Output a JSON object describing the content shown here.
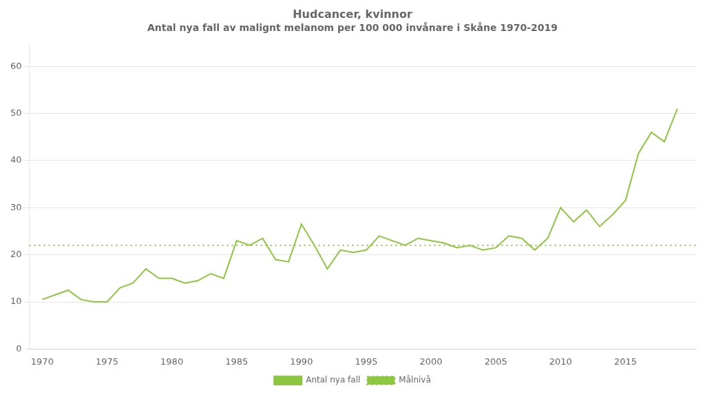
{
  "chart_data": {
    "type": "line",
    "title": "Hudcancer, kvinnor",
    "subtitle": "Antal nya fall av malignt melanom per 100 000 invånare i Skåne 1970-2019",
    "x": [
      1970,
      1971,
      1972,
      1973,
      1974,
      1975,
      1976,
      1977,
      1978,
      1979,
      1980,
      1981,
      1982,
      1983,
      1984,
      1985,
      1986,
      1987,
      1988,
      1989,
      1990,
      1991,
      1992,
      1993,
      1994,
      1995,
      1996,
      1997,
      1998,
      1999,
      2000,
      2001,
      2002,
      2003,
      2004,
      2005,
      2006,
      2007,
      2008,
      2009,
      2010,
      2011,
      2012,
      2013,
      2014,
      2015,
      2016,
      2017,
      2018,
      2019
    ],
    "series": [
      {
        "name": "Antal nya fall",
        "color": "#8DC63F",
        "line_style": "solid",
        "values": [
          10.5,
          11.5,
          12.5,
          10.5,
          10.0,
          10.0,
          13.0,
          14.0,
          17.0,
          15.0,
          15.0,
          14.0,
          14.5,
          16.0,
          15.0,
          23.0,
          22.0,
          23.5,
          19.0,
          18.5,
          26.5,
          22.0,
          17.0,
          21.0,
          20.5,
          21.0,
          24.0,
          23.0,
          22.0,
          23.5,
          23.0,
          22.5,
          21.5,
          22.0,
          21.0,
          21.5,
          24.0,
          23.5,
          21.0,
          23.5,
          30.0,
          27.0,
          29.5,
          26.0,
          28.5,
          31.5,
          41.5,
          46.0,
          44.0,
          51.0
        ]
      },
      {
        "name": "Målnivå",
        "color": "#8DC63F",
        "line_style": "dotted",
        "x": [
          1969,
          2020.5
        ],
        "values": [
          22,
          22
        ]
      }
    ],
    "xlim": [
      1969,
      2020.5
    ],
    "xticks": [
      1970,
      1975,
      1980,
      1985,
      1990,
      1995,
      2000,
      2005,
      2010,
      2015
    ],
    "ylim": [
      0,
      65
    ],
    "yticks": [
      0,
      10,
      20,
      30,
      40,
      50,
      60
    ],
    "grid": "y",
    "legend": "bottom"
  }
}
